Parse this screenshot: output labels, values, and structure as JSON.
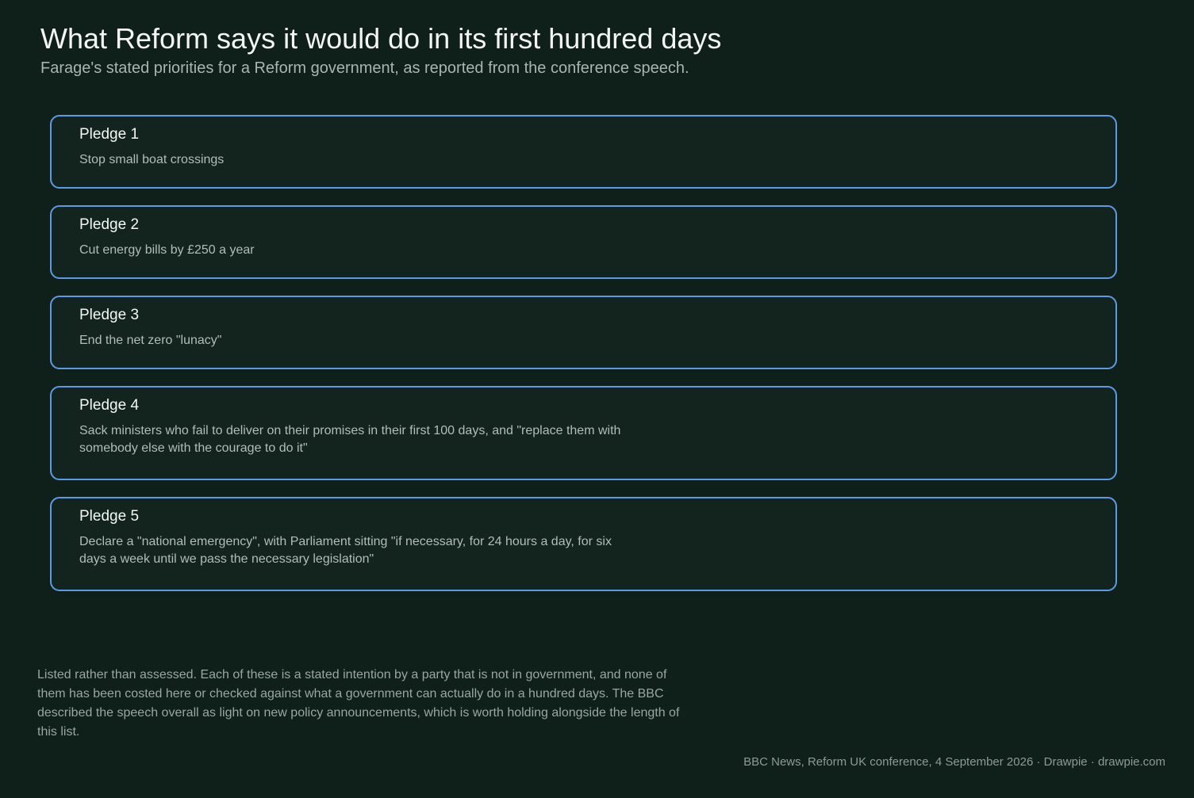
{
  "header": {
    "title": "What Reform says it would do in its first hundred days",
    "subtitle": "Farage's stated priorities for a Reform government, as reported from the conference speech."
  },
  "pledges": [
    {
      "label": "Pledge 1",
      "text": "Stop small boat crossings"
    },
    {
      "label": "Pledge 2",
      "text": "Cut energy bills by £250 a year"
    },
    {
      "label": "Pledge 3",
      "text": "End the net zero \"lunacy\""
    },
    {
      "label": "Pledge 4",
      "text": "Sack ministers who fail to deliver on their promises in their first 100 days, and \"replace them with somebody else with the courage to do it\""
    },
    {
      "label": "Pledge 5",
      "text": "Declare a \"national emergency\", with Parliament sitting \"if necessary, for 24 hours a day, for six days a week until we pass the necessary legislation\""
    }
  ],
  "footer": {
    "note": "Listed rather than assessed. Each of these is a stated intention by a party that is not in government, and none of them has been costed here or checked against what a government can actually do in a hundred days. The BBC described the speech overall as light on new policy announcements, which is worth holding alongside the length of this list.",
    "source": "BBC News, Reform UK conference, 4 September 2026  ·  Drawpie · drawpie.com"
  },
  "colors": {
    "background": "#0f1f1a",
    "card_border": "#5b9be6",
    "card_fill": "#13241f"
  }
}
